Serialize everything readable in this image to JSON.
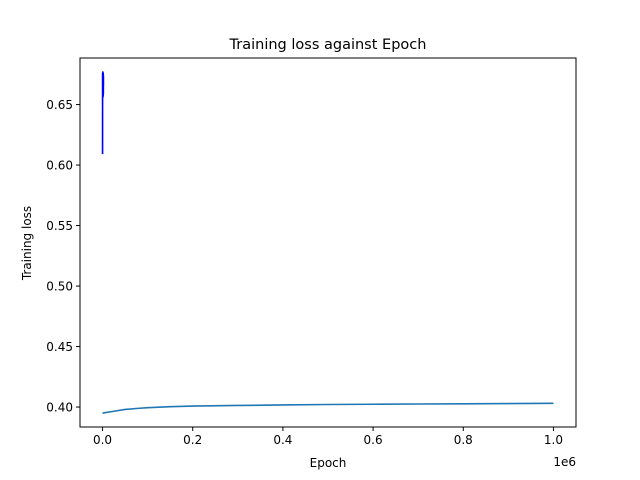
{
  "chart_data": {
    "type": "line",
    "title": "Training loss against Epoch",
    "xlabel": "Epoch",
    "ylabel": "Training loss",
    "x_offset_label": "1e6",
    "xlim": [
      -50000,
      1050000
    ],
    "ylim": [
      0.3835,
      0.6885
    ],
    "x_ticks": [
      0,
      200000,
      400000,
      600000,
      800000,
      1000000
    ],
    "x_tick_labels": [
      "0.0",
      "0.2",
      "0.4",
      "0.6",
      "0.8",
      "1.0"
    ],
    "y_ticks": [
      0.4,
      0.45,
      0.5,
      0.55,
      0.6,
      0.65
    ],
    "y_tick_labels": [
      "0.40",
      "0.45",
      "0.50",
      "0.55",
      "0.60",
      "0.65"
    ],
    "grid": false,
    "legend": "none",
    "series": [
      {
        "color": "#0000ff",
        "x": [
          0,
          100,
          200,
          300,
          400,
          500,
          600,
          700,
          800,
          900,
          1000,
          1100,
          1200,
          1300,
          1400,
          1500,
          1600,
          1700,
          1800,
          1900,
          2000
        ],
        "y": [
          0.609,
          0.676,
          0.655,
          0.674,
          0.66,
          0.672,
          0.656,
          0.677,
          0.663,
          0.67,
          0.658,
          0.675,
          0.661,
          0.673,
          0.657,
          0.676,
          0.664,
          0.669,
          0.659,
          0.674,
          0.666
        ]
      },
      {
        "color": "#1f77b4",
        "x": [
          0,
          25000,
          50000,
          75000,
          100000,
          150000,
          200000,
          300000,
          400000,
          500000,
          600000,
          700000,
          800000,
          900000,
          1000000
        ],
        "y": [
          0.395,
          0.3965,
          0.398,
          0.3988,
          0.3995,
          0.4003,
          0.4008,
          0.4013,
          0.4017,
          0.4021,
          0.4023,
          0.4025,
          0.4027,
          0.4029,
          0.4031
        ]
      }
    ]
  }
}
